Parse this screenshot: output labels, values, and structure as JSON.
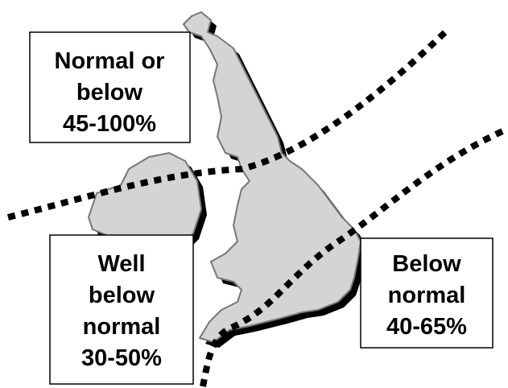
{
  "regions": [
    {
      "lines": [
        "Normal or",
        "below",
        "45-100%"
      ]
    },
    {
      "lines": [
        "Well",
        "below",
        "normal",
        "30-50%"
      ]
    },
    {
      "lines": [
        "Below",
        "normal",
        "40-65%"
      ]
    }
  ]
}
